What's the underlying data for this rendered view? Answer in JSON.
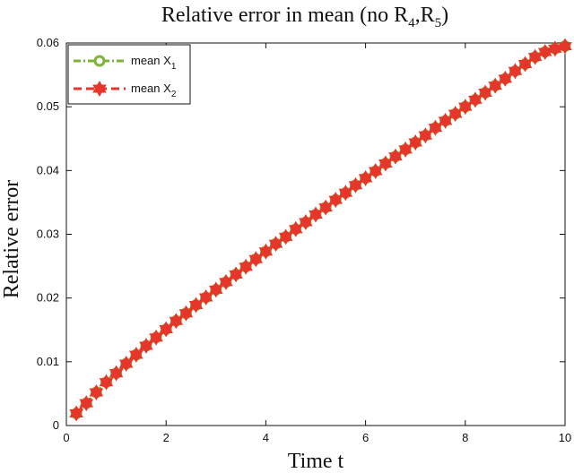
{
  "chart_data": {
    "type": "line",
    "title": {
      "main": "Relative error in mean (no R",
      "r4_sub": "4",
      "separator": ",R",
      "r5_sub": "5",
      "close": ")"
    },
    "xlabel": "Time t",
    "ylabel": "Relative error",
    "xlim": [
      0,
      10
    ],
    "ylim": [
      0,
      0.06
    ],
    "xticks": [
      "0",
      "2",
      "4",
      "6",
      "8",
      "10"
    ],
    "yticks": [
      "0",
      "0.01",
      "0.02",
      "0.03",
      "0.04",
      "0.05",
      "0.06"
    ],
    "grid": false,
    "legend_position": "top-left",
    "x": [
      0.2,
      0.4,
      0.6,
      0.8,
      1.0,
      1.2,
      1.4,
      1.6,
      1.8,
      2.0,
      2.2,
      2.4,
      2.6,
      2.8,
      3.0,
      3.2,
      3.4,
      3.6,
      3.8,
      4.0,
      4.2,
      4.4,
      4.6,
      4.8,
      5.0,
      5.2,
      5.4,
      5.6,
      5.8,
      6.0,
      6.2,
      6.4,
      6.6,
      6.8,
      7.0,
      7.2,
      7.4,
      7.6,
      7.8,
      8.0,
      8.2,
      8.4,
      8.6,
      8.8,
      9.0,
      9.2,
      9.4,
      9.6,
      9.8,
      10.0
    ],
    "series": [
      {
        "name": "mean X",
        "sub": "1",
        "color": "#7fb239",
        "marker": "circle",
        "line_style": "dash-dot",
        "values": [
          0.0019,
          0.0035,
          0.0052,
          0.0068,
          0.0082,
          0.0097,
          0.0111,
          0.0125,
          0.0138,
          0.0151,
          0.0164,
          0.0176,
          0.0189,
          0.0201,
          0.0213,
          0.0225,
          0.0237,
          0.0249,
          0.0261,
          0.0273,
          0.0285,
          0.0296,
          0.0308,
          0.0319,
          0.0331,
          0.0342,
          0.0354,
          0.0365,
          0.0377,
          0.0388,
          0.0399,
          0.0411,
          0.0422,
          0.0433,
          0.0444,
          0.0455,
          0.0467,
          0.0478,
          0.0489,
          0.05,
          0.0511,
          0.0522,
          0.0533,
          0.0544,
          0.0556,
          0.0567,
          0.0578,
          0.0586,
          0.0591,
          0.0595
        ]
      },
      {
        "name": "mean X",
        "sub": "2",
        "color": "#e8352c",
        "marker": "hexagram",
        "line_style": "dashed",
        "values": [
          0.0019,
          0.0035,
          0.0052,
          0.0068,
          0.0082,
          0.0097,
          0.0111,
          0.0125,
          0.0138,
          0.0151,
          0.0164,
          0.0176,
          0.0189,
          0.0201,
          0.0213,
          0.0225,
          0.0237,
          0.0249,
          0.0261,
          0.0273,
          0.0285,
          0.0296,
          0.0308,
          0.0319,
          0.0331,
          0.0342,
          0.0354,
          0.0365,
          0.0377,
          0.0388,
          0.0399,
          0.0411,
          0.0422,
          0.0433,
          0.0444,
          0.0455,
          0.0467,
          0.0478,
          0.0489,
          0.05,
          0.0511,
          0.0522,
          0.0533,
          0.0544,
          0.0556,
          0.0567,
          0.0578,
          0.0586,
          0.0591,
          0.0595
        ]
      }
    ]
  }
}
